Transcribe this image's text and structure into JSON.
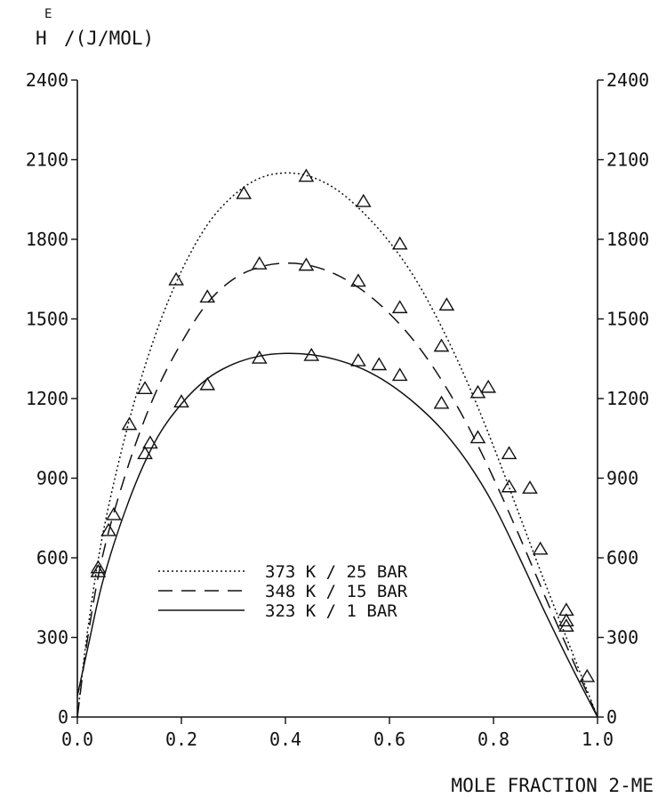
{
  "chart_data": {
    "type": "line",
    "ylabel_main": "H",
    "ylabel_superscript": "E",
    "ylabel_units": "/(J/MOL)",
    "xlabel": "MOLE FRACTION 2-ME",
    "xlim": [
      0.0,
      1.0
    ],
    "ylim": [
      0,
      2400
    ],
    "x_ticks": [
      "0.0",
      "0.2",
      "0.4",
      "0.6",
      "0.8",
      "1.0"
    ],
    "y_ticks": [
      "0",
      "300",
      "600",
      "900",
      "1200",
      "1500",
      "1800",
      "2100",
      "2400"
    ],
    "legend_position": "lower-center",
    "series": [
      {
        "name": "373 K / 25 BAR",
        "line_style": "dotted",
        "curve": [
          [
            0.0,
            0
          ],
          [
            0.02,
            330
          ],
          [
            0.05,
            700
          ],
          [
            0.1,
            1120
          ],
          [
            0.15,
            1440
          ],
          [
            0.2,
            1680
          ],
          [
            0.25,
            1855
          ],
          [
            0.3,
            1965
          ],
          [
            0.35,
            2030
          ],
          [
            0.4,
            2050
          ],
          [
            0.45,
            2035
          ],
          [
            0.5,
            1985
          ],
          [
            0.55,
            1900
          ],
          [
            0.6,
            1790
          ],
          [
            0.65,
            1650
          ],
          [
            0.7,
            1470
          ],
          [
            0.75,
            1260
          ],
          [
            0.8,
            1020
          ],
          [
            0.85,
            760
          ],
          [
            0.9,
            500
          ],
          [
            0.95,
            250
          ],
          [
            1.0,
            0
          ]
        ],
        "points_x": [
          0.04,
          0.1,
          0.13,
          0.19,
          0.25,
          0.32,
          0.44,
          0.55,
          0.62,
          0.71,
          0.79,
          0.87,
          0.94,
          0.98
        ],
        "points_y": [
          560,
          1100,
          1235,
          1645,
          1580,
          1970,
          2035,
          1940,
          1780,
          1550,
          1240,
          860,
          400,
          150
        ]
      },
      {
        "name": "348 K / 15 BAR",
        "line_style": "dashed",
        "curve": [
          [
            0.0,
            0
          ],
          [
            0.02,
            300
          ],
          [
            0.05,
            620
          ],
          [
            0.1,
            960
          ],
          [
            0.15,
            1220
          ],
          [
            0.2,
            1410
          ],
          [
            0.25,
            1560
          ],
          [
            0.3,
            1650
          ],
          [
            0.35,
            1695
          ],
          [
            0.4,
            1710
          ],
          [
            0.45,
            1700
          ],
          [
            0.5,
            1665
          ],
          [
            0.55,
            1605
          ],
          [
            0.6,
            1520
          ],
          [
            0.65,
            1410
          ],
          [
            0.7,
            1270
          ],
          [
            0.75,
            1100
          ],
          [
            0.8,
            900
          ],
          [
            0.85,
            680
          ],
          [
            0.9,
            450
          ],
          [
            0.95,
            225
          ],
          [
            1.0,
            0
          ]
        ],
        "points_x": [
          0.13,
          0.35,
          0.44,
          0.54,
          0.62,
          0.7,
          0.77,
          0.83,
          0.94
        ],
        "points_y": [
          990,
          1705,
          1700,
          1640,
          1540,
          1395,
          1220,
          990,
          360
        ]
      },
      {
        "name": "323 K / 1 BAR",
        "line_style": "solid",
        "curve": [
          [
            0.0,
            80
          ],
          [
            0.02,
            260
          ],
          [
            0.05,
            520
          ],
          [
            0.1,
            820
          ],
          [
            0.15,
            1040
          ],
          [
            0.2,
            1180
          ],
          [
            0.25,
            1275
          ],
          [
            0.3,
            1330
          ],
          [
            0.35,
            1360
          ],
          [
            0.4,
            1370
          ],
          [
            0.45,
            1365
          ],
          [
            0.5,
            1345
          ],
          [
            0.55,
            1310
          ],
          [
            0.6,
            1255
          ],
          [
            0.65,
            1180
          ],
          [
            0.7,
            1085
          ],
          [
            0.75,
            960
          ],
          [
            0.8,
            800
          ],
          [
            0.85,
            600
          ],
          [
            0.9,
            390
          ],
          [
            0.95,
            190
          ],
          [
            1.0,
            0
          ]
        ],
        "points_x": [
          0.04,
          0.06,
          0.07,
          0.14,
          0.2,
          0.25,
          0.35,
          0.45,
          0.54,
          0.58,
          0.62,
          0.7,
          0.77,
          0.83,
          0.89,
          0.94
        ],
        "points_y": [
          545,
          700,
          760,
          1030,
          1185,
          1250,
          1350,
          1360,
          1340,
          1325,
          1285,
          1180,
          1050,
          865,
          630,
          340
        ]
      }
    ]
  }
}
